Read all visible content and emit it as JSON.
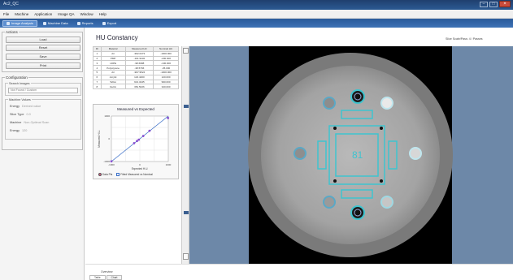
{
  "window": {
    "title": "Ac2_QC",
    "min": "–",
    "max": "□",
    "close": "×"
  },
  "menu": [
    "File",
    "Machine",
    "Application",
    "Image QA",
    "Window",
    "Help"
  ],
  "toolbar": [
    {
      "label": "Image Analysis",
      "active": true
    },
    {
      "label": "Machine Data",
      "active": false
    },
    {
      "label": "Reports",
      "active": false
    },
    {
      "label": "Export",
      "active": false
    }
  ],
  "actions": {
    "title": "Actions",
    "buttons": [
      "Load",
      "Reset",
      "Save",
      "Print"
    ]
  },
  "configuration": {
    "title": "Configuration",
    "search_label": "Search Images",
    "search_value": "Not Found / Custom",
    "machine_group": "Machine Values",
    "fields": [
      {
        "label": "Energy",
        "value": "Derived value"
      },
      {
        "label": "Slice Type",
        "value": "0.0"
      },
      {
        "label": "Machine",
        "value": "Non-Optimal Scan"
      },
      {
        "label": "Energy",
        "value": "120"
      }
    ]
  },
  "page": {
    "title": "HU Constancy",
    "top_right": "Slice Scale/Pass: 4 / Passes"
  },
  "table": {
    "headers": [
      "ID",
      "Material",
      "Measured HU",
      "Nominal HU"
    ],
    "rows": [
      [
        "1",
        "Air",
        "-992.0473",
        "-1000.000"
      ],
      [
        "2",
        "PMP",
        "-191.9432",
        "-200.000"
      ],
      [
        "3",
        "LDPE",
        "-98.6988",
        "-100.000"
      ],
      [
        "4",
        "Polystyrene",
        "-38.5766",
        "-35.000"
      ],
      [
        "5",
        "Air",
        "-997.9524",
        "-1000.000"
      ],
      [
        "6",
        "Acrylic",
        "123.4400",
        "120.000"
      ],
      [
        "7",
        "Teflon",
        "913.3245",
        "990.000"
      ],
      [
        "8",
        "Delrin",
        "352.5026",
        "340.000"
      ]
    ]
  },
  "chart_data": {
    "type": "scatter",
    "title": "Measured vs Expected",
    "xlabel": "Expected H.U.",
    "ylabel": "Measured H.U.",
    "xlim": [
      -1000,
      1000
    ],
    "ylim": [
      -1000,
      1000
    ],
    "xticks": [
      "-1000",
      "0",
      "1000"
    ],
    "yticks": [
      "1000",
      "0",
      "-1000"
    ],
    "grid": true,
    "series": [
      {
        "name": "Data Pts",
        "x": [
          -1000,
          -200,
          -100,
          -35,
          120,
          340,
          990
        ],
        "y": [
          -992,
          -192,
          -99,
          -39,
          123,
          353,
          913
        ]
      },
      {
        "name": "Fitted Measured vs Nominal",
        "x": [
          -1000,
          1000
        ],
        "y": [
          -1000,
          1000
        ]
      }
    ],
    "legend": [
      "Data Pts",
      "Fitted Measured vs Nominal"
    ],
    "legend_placement": "bottom",
    "colors": {
      "points": "#8a4fd0",
      "fit": "#3a6fc8"
    }
  },
  "viewer": {
    "insert_label": "81",
    "overlay_color": "#3ec4cf"
  },
  "bottom": {
    "tab_label": "Overview",
    "tabs": [
      "Table",
      "Chart"
    ]
  }
}
